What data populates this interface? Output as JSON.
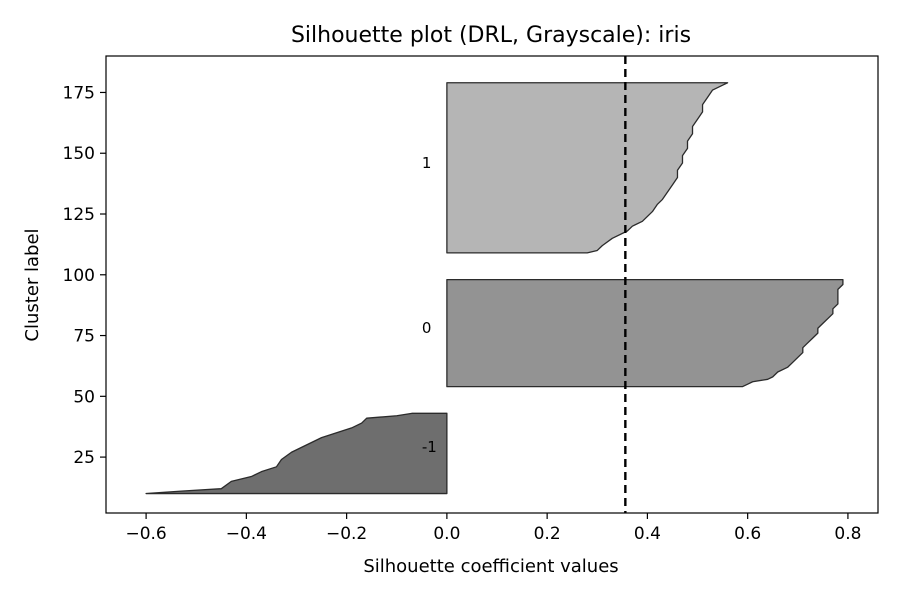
{
  "chart_data": {
    "type": "area",
    "title": "Silhouette plot (DRL, Grayscale): iris",
    "xlabel": "Silhouette coefficient values",
    "ylabel": "Cluster label",
    "xlim": [
      -0.68,
      0.86
    ],
    "ylim": [
      2,
      190
    ],
    "xticks": [
      -0.6,
      -0.4,
      -0.2,
      0.0,
      0.2,
      0.4,
      0.6,
      0.8
    ],
    "xtick_labels": [
      "−0.6",
      "−0.4",
      "−0.2",
      "0.0",
      "0.2",
      "0.4",
      "0.6",
      "0.8"
    ],
    "yticks": [
      25,
      50,
      75,
      100,
      125,
      150,
      175
    ],
    "ytick_labels": [
      "25",
      "50",
      "75",
      "100",
      "125",
      "150",
      "175"
    ],
    "average_silhouette": 0.356,
    "grid": false,
    "series": [
      {
        "label": "-1",
        "color": "#6e6e6e",
        "label_x": -0.05,
        "label_y": 27,
        "profile": [
          [
            10,
            -0.6
          ],
          [
            11,
            -0.53
          ],
          [
            12,
            -0.45
          ],
          [
            15,
            -0.43
          ],
          [
            17,
            -0.39
          ],
          [
            19,
            -0.37
          ],
          [
            21,
            -0.34
          ],
          [
            24,
            -0.33
          ],
          [
            27,
            -0.31
          ],
          [
            29,
            -0.29
          ],
          [
            31,
            -0.27
          ],
          [
            33,
            -0.25
          ],
          [
            35,
            -0.22
          ],
          [
            37,
            -0.19
          ],
          [
            39,
            -0.17
          ],
          [
            41,
            -0.16
          ],
          [
            42,
            -0.1
          ],
          [
            43,
            -0.07
          ]
        ]
      },
      {
        "label": "0",
        "color": "#939393",
        "label_x": -0.05,
        "label_y": 76,
        "profile": [
          [
            54,
            0.59
          ],
          [
            55,
            0.6
          ],
          [
            56,
            0.61
          ],
          [
            57,
            0.64
          ],
          [
            58,
            0.65
          ],
          [
            60,
            0.66
          ],
          [
            62,
            0.68
          ],
          [
            64,
            0.69
          ],
          [
            66,
            0.7
          ],
          [
            68,
            0.71
          ],
          [
            70,
            0.71
          ],
          [
            72,
            0.72
          ],
          [
            74,
            0.73
          ],
          [
            76,
            0.74
          ],
          [
            78,
            0.74
          ],
          [
            80,
            0.75
          ],
          [
            82,
            0.76
          ],
          [
            84,
            0.77
          ],
          [
            86,
            0.77
          ],
          [
            88,
            0.78
          ],
          [
            90,
            0.78
          ],
          [
            92,
            0.78
          ],
          [
            94,
            0.78
          ],
          [
            96,
            0.79
          ],
          [
            98,
            0.79
          ]
        ]
      },
      {
        "label": "1",
        "color": "#b5b5b5",
        "label_x": -0.05,
        "label_y": 144,
        "profile": [
          [
            109,
            0.28
          ],
          [
            110,
            0.3
          ],
          [
            112,
            0.31
          ],
          [
            115,
            0.33
          ],
          [
            118,
            0.36
          ],
          [
            120,
            0.37
          ],
          [
            122,
            0.39
          ],
          [
            124,
            0.4
          ],
          [
            126,
            0.41
          ],
          [
            129,
            0.42
          ],
          [
            131,
            0.43
          ],
          [
            134,
            0.44
          ],
          [
            137,
            0.45
          ],
          [
            140,
            0.46
          ],
          [
            143,
            0.46
          ],
          [
            146,
            0.47
          ],
          [
            149,
            0.47
          ],
          [
            152,
            0.48
          ],
          [
            155,
            0.48
          ],
          [
            158,
            0.49
          ],
          [
            161,
            0.49
          ],
          [
            164,
            0.5
          ],
          [
            167,
            0.51
          ],
          [
            170,
            0.51
          ],
          [
            173,
            0.52
          ],
          [
            176,
            0.53
          ],
          [
            178,
            0.55
          ],
          [
            179,
            0.56
          ]
        ]
      }
    ]
  }
}
